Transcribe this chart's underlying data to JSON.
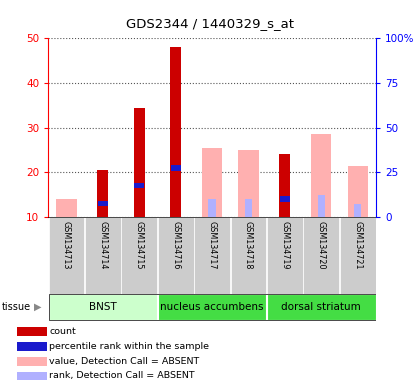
{
  "title": "GDS2344 / 1440329_s_at",
  "samples": [
    "GSM134713",
    "GSM134714",
    "GSM134715",
    "GSM134716",
    "GSM134717",
    "GSM134718",
    "GSM134719",
    "GSM134720",
    "GSM134721"
  ],
  "red_values": [
    0,
    20.5,
    34.5,
    48.0,
    0,
    0,
    24.0,
    0,
    0
  ],
  "blue_values": [
    0,
    13.0,
    17.0,
    21.0,
    0,
    0,
    14.0,
    0,
    0
  ],
  "pink_values": [
    14.0,
    0,
    0,
    0,
    25.5,
    25.0,
    0,
    28.5,
    21.5
  ],
  "lblue_values": [
    0,
    0,
    0,
    0,
    14.0,
    14.0,
    0,
    15.0,
    13.0
  ],
  "ylim_left": [
    10,
    50
  ],
  "ylim_right": [
    0,
    100
  ],
  "yticks_left": [
    10,
    20,
    30,
    40,
    50
  ],
  "yticks_right": [
    0,
    25,
    50,
    75,
    100
  ],
  "ytick_labels_left": [
    "10",
    "20",
    "30",
    "40",
    "50"
  ],
  "ytick_labels_right": [
    "0",
    "25",
    "50",
    "75",
    "100%"
  ],
  "red_color": "#cc0000",
  "blue_color": "#1a1acc",
  "pink_color": "#ffb0b0",
  "lblue_color": "#b0b0ff",
  "tissue_data": [
    {
      "label": "BNST",
      "start": 0,
      "end": 3,
      "color": "#ccffcc"
    },
    {
      "label": "nucleus accumbens",
      "start": 3,
      "end": 6,
      "color": "#44dd44"
    },
    {
      "label": "dorsal striatum",
      "start": 6,
      "end": 9,
      "color": "#44dd44"
    }
  ],
  "legend_items": [
    {
      "color": "#cc0000",
      "label": "count"
    },
    {
      "color": "#1a1acc",
      "label": "percentile rank within the sample"
    },
    {
      "color": "#ffb0b0",
      "label": "value, Detection Call = ABSENT"
    },
    {
      "color": "#b0b0ff",
      "label": "rank, Detection Call = ABSENT"
    }
  ]
}
